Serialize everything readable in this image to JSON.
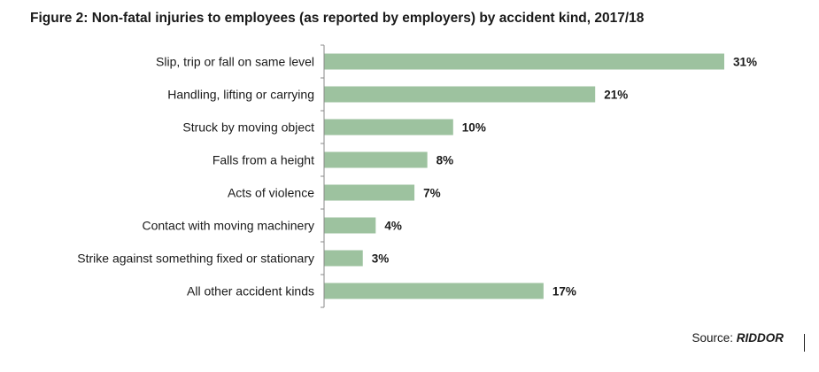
{
  "chart_data": {
    "type": "bar",
    "orientation": "horizontal",
    "title": "Figure 2: Non-fatal injuries to employees (as reported by employers) by accident kind, 2017/18",
    "categories": [
      "Slip, trip or fall on same level",
      "Handling, lifting or carrying",
      "Struck by moving object",
      "Falls from a height",
      "Acts of violence",
      "Contact with moving machinery",
      "Strike against something fixed or stationary",
      "All other accident kinds"
    ],
    "values": [
      31,
      21,
      10,
      8,
      7,
      4,
      3,
      17
    ],
    "value_labels": [
      "31%",
      "21%",
      "10%",
      "8%",
      "7%",
      "4%",
      "3%",
      "17%"
    ],
    "unit": "%",
    "xlim": [
      0,
      32
    ],
    "grid": false,
    "legend": "none",
    "bar_color": "#9dc29f",
    "source_prefix": "Source: ",
    "source_name": "RIDDOR"
  }
}
